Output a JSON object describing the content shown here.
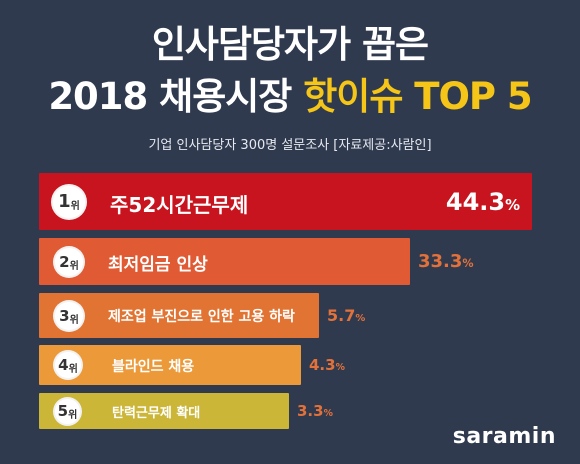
{
  "header": {
    "title_line1": "인사담당자가 꼽은",
    "title_line2_prefix": "2018 채용시장",
    "title_line2_highlight": "핫이슈 TOP 5",
    "subtitle": "기업 인사담당자 300명 설문조사 [자료제공:사람인]"
  },
  "brand": {
    "logo_text": "saramin"
  },
  "colors": {
    "background": "#2f3a4f",
    "title_highlight": "#f5c518",
    "bars": [
      "#c8141e",
      "#e05a33",
      "#e27433",
      "#ec9a39",
      "#cbb637"
    ],
    "pct_others": "#e2713a"
  },
  "chart_data": {
    "type": "bar",
    "orientation": "horizontal",
    "title": "인사담당자가 꼽은 2018 채용시장 핫이슈 TOP 5",
    "subtitle": "기업 인사담당자 300명 설문조사 [자료제공:사람인]",
    "rank_unit": "위",
    "unit": "%",
    "categories": [
      "주52시간근무제",
      "최저임금 인상",
      "제조업 부진으로 인한 고용 하락",
      "블라인드 채용",
      "탄력근무제 확대"
    ],
    "ranks": [
      "1",
      "2",
      "3",
      "4",
      "5"
    ],
    "values": [
      44.3,
      33.3,
      5.7,
      4.3,
      3.3
    ],
    "value_labels": [
      "44.3",
      "33.3",
      "5.7",
      "4.3",
      "3.3"
    ]
  }
}
